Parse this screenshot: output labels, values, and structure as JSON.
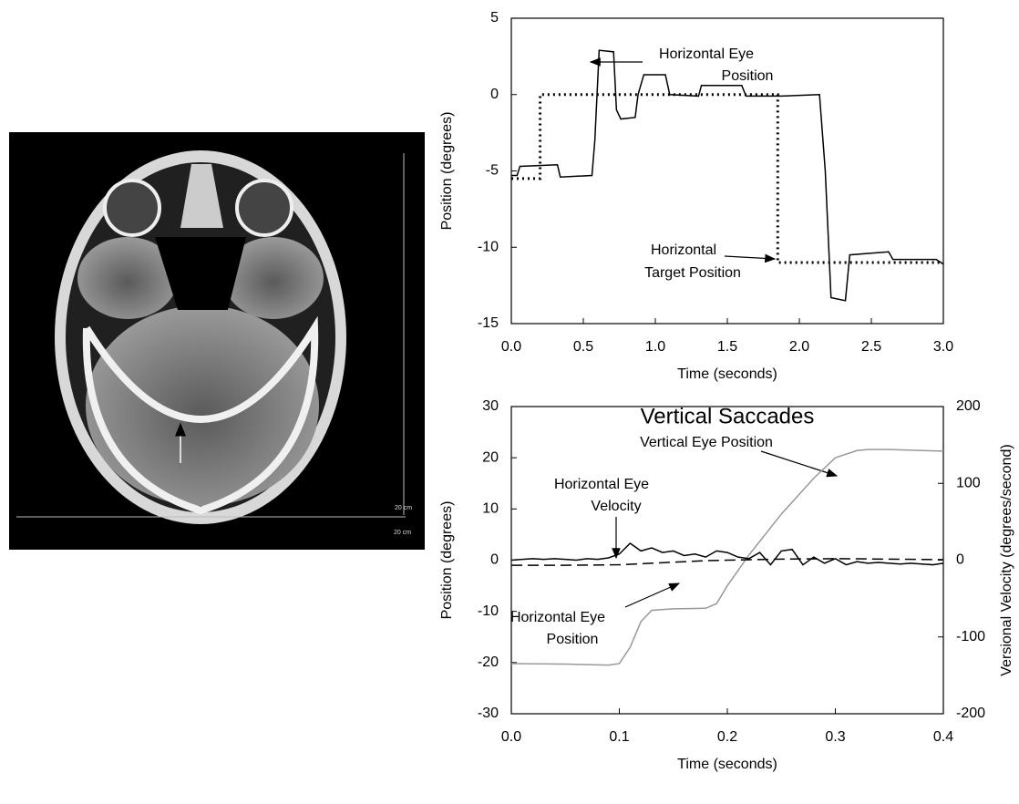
{
  "image": {
    "scale_labels": [
      "20 cm",
      "20 cm"
    ]
  },
  "chart_data": [
    {
      "type": "line",
      "x_label": "Time (seconds)",
      "y_label": "Position (degrees)",
      "xlim": [
        0,
        3
      ],
      "ylim": [
        -15,
        5
      ],
      "xticks": [
        {
          "value": 0,
          "label": "0.0"
        },
        0.5,
        {
          "value": 1,
          "label": "1.0"
        },
        1.5,
        {
          "value": 2,
          "label": "2.0"
        },
        2.5,
        {
          "value": 3,
          "label": "3.0"
        }
      ],
      "yticks": [
        -15,
        -10,
        -5,
        0,
        5
      ],
      "annotations": [
        {
          "lines": [
            "Horizontal Eye",
            "Position"
          ]
        },
        {
          "lines": [
            "Horizontal",
            "Target Position"
          ]
        }
      ],
      "series": [
        {
          "color": "#000000",
          "line_style": "solid",
          "x": [
            0,
            0.04,
            0.06,
            0.32,
            0.34,
            0.56,
            0.58,
            0.61,
            0.71,
            0.73,
            0.76,
            0.86,
            0.88,
            0.92,
            1.07,
            1.1,
            1.3,
            1.32,
            1.6,
            1.63,
            1.88,
            2.14,
            2.18,
            2.22,
            2.32,
            2.35,
            2.62,
            2.65,
            2.95,
            3.0
          ],
          "values": [
            -5.3,
            -5.3,
            -4.7,
            -4.6,
            -5.4,
            -5.3,
            -3,
            2.9,
            2.8,
            -1,
            -1.6,
            -1.5,
            0,
            1.3,
            1.3,
            0,
            -0.1,
            0.6,
            0.6,
            -0.1,
            -0.1,
            0,
            -5,
            -13.3,
            -13.5,
            -10.5,
            -10.3,
            -10.8,
            -10.8,
            -11.1
          ]
        },
        {
          "color": "#000000",
          "line_style": "dotted",
          "x": [
            0,
            0.2,
            0.2,
            1.85,
            1.85,
            3.0
          ],
          "values": [
            -5.5,
            -5.5,
            0,
            0,
            -11,
            -11
          ]
        }
      ]
    },
    {
      "type": "line",
      "title": "Vertical Saccades",
      "x_label": "Time (seconds)",
      "y_label": "Position (degrees)",
      "y2_label": "Versional Velocity (degrees/second)",
      "xlim": [
        0,
        0.4
      ],
      "ylim": [
        -30,
        30
      ],
      "y2lim": [
        -200,
        200
      ],
      "xticks": [
        {
          "value": 0,
          "label": "0.0"
        },
        0.1,
        0.2,
        0.3,
        0.4
      ],
      "yticks": [
        -30,
        -20,
        -10,
        0,
        10,
        20,
        30
      ],
      "y2ticks": [
        -200,
        -100,
        0,
        100,
        200
      ],
      "annotations": [
        {
          "lines": [
            "Vertical Eye Position"
          ]
        },
        {
          "lines": [
            "Horizontal Eye",
            "Velocity"
          ]
        },
        {
          "lines": [
            "Horizontal Eye",
            "Position"
          ]
        }
      ],
      "series": [
        {
          "color": "#999999",
          "line_style": "solid",
          "x": [
            0,
            0.05,
            0.09,
            0.1,
            0.11,
            0.12,
            0.13,
            0.15,
            0.18,
            0.19,
            0.2,
            0.22,
            0.25,
            0.28,
            0.3,
            0.32,
            0.33,
            0.35,
            0.4
          ],
          "values": [
            -20.2,
            -20.3,
            -20.5,
            -20.2,
            -17,
            -12,
            -9.8,
            -9.5,
            -9.4,
            -8.5,
            -5,
            1,
            9,
            16,
            20,
            21.4,
            21.6,
            21.6,
            21.3
          ]
        },
        {
          "color": "#000000",
          "line_style": "solid",
          "axis": "y2",
          "x": [
            0,
            0.01,
            0.02,
            0.03,
            0.04,
            0.05,
            0.06,
            0.07,
            0.08,
            0.09,
            0.1,
            0.11,
            0.12,
            0.13,
            0.14,
            0.15,
            0.16,
            0.17,
            0.18,
            0.19,
            0.2,
            0.21,
            0.22,
            0.23,
            0.24,
            0.25,
            0.26,
            0.27,
            0.28,
            0.29,
            0.3,
            0.31,
            0.32,
            0.33,
            0.34,
            0.35,
            0.36,
            0.37,
            0.38,
            0.39,
            0.4
          ],
          "values": [
            0,
            1,
            2,
            1,
            2,
            1,
            0,
            2,
            1,
            3,
            8,
            22,
            12,
            16,
            10,
            12,
            6,
            8,
            4,
            12,
            10,
            4,
            2,
            10,
            -6,
            12,
            14,
            -6,
            4,
            -4,
            2,
            -6,
            -2,
            -4,
            -3,
            -4,
            -5,
            -4,
            -5,
            -6,
            -4
          ]
        },
        {
          "color": "#000000",
          "line_style": "dashed",
          "x": [
            0,
            0.05,
            0.1,
            0.12,
            0.15,
            0.18,
            0.2,
            0.25,
            0.3,
            0.4
          ],
          "values": [
            -1,
            -1,
            -0.9,
            -0.7,
            -0.4,
            -0.1,
            0,
            0.2,
            0.3,
            0.1
          ]
        }
      ]
    }
  ]
}
